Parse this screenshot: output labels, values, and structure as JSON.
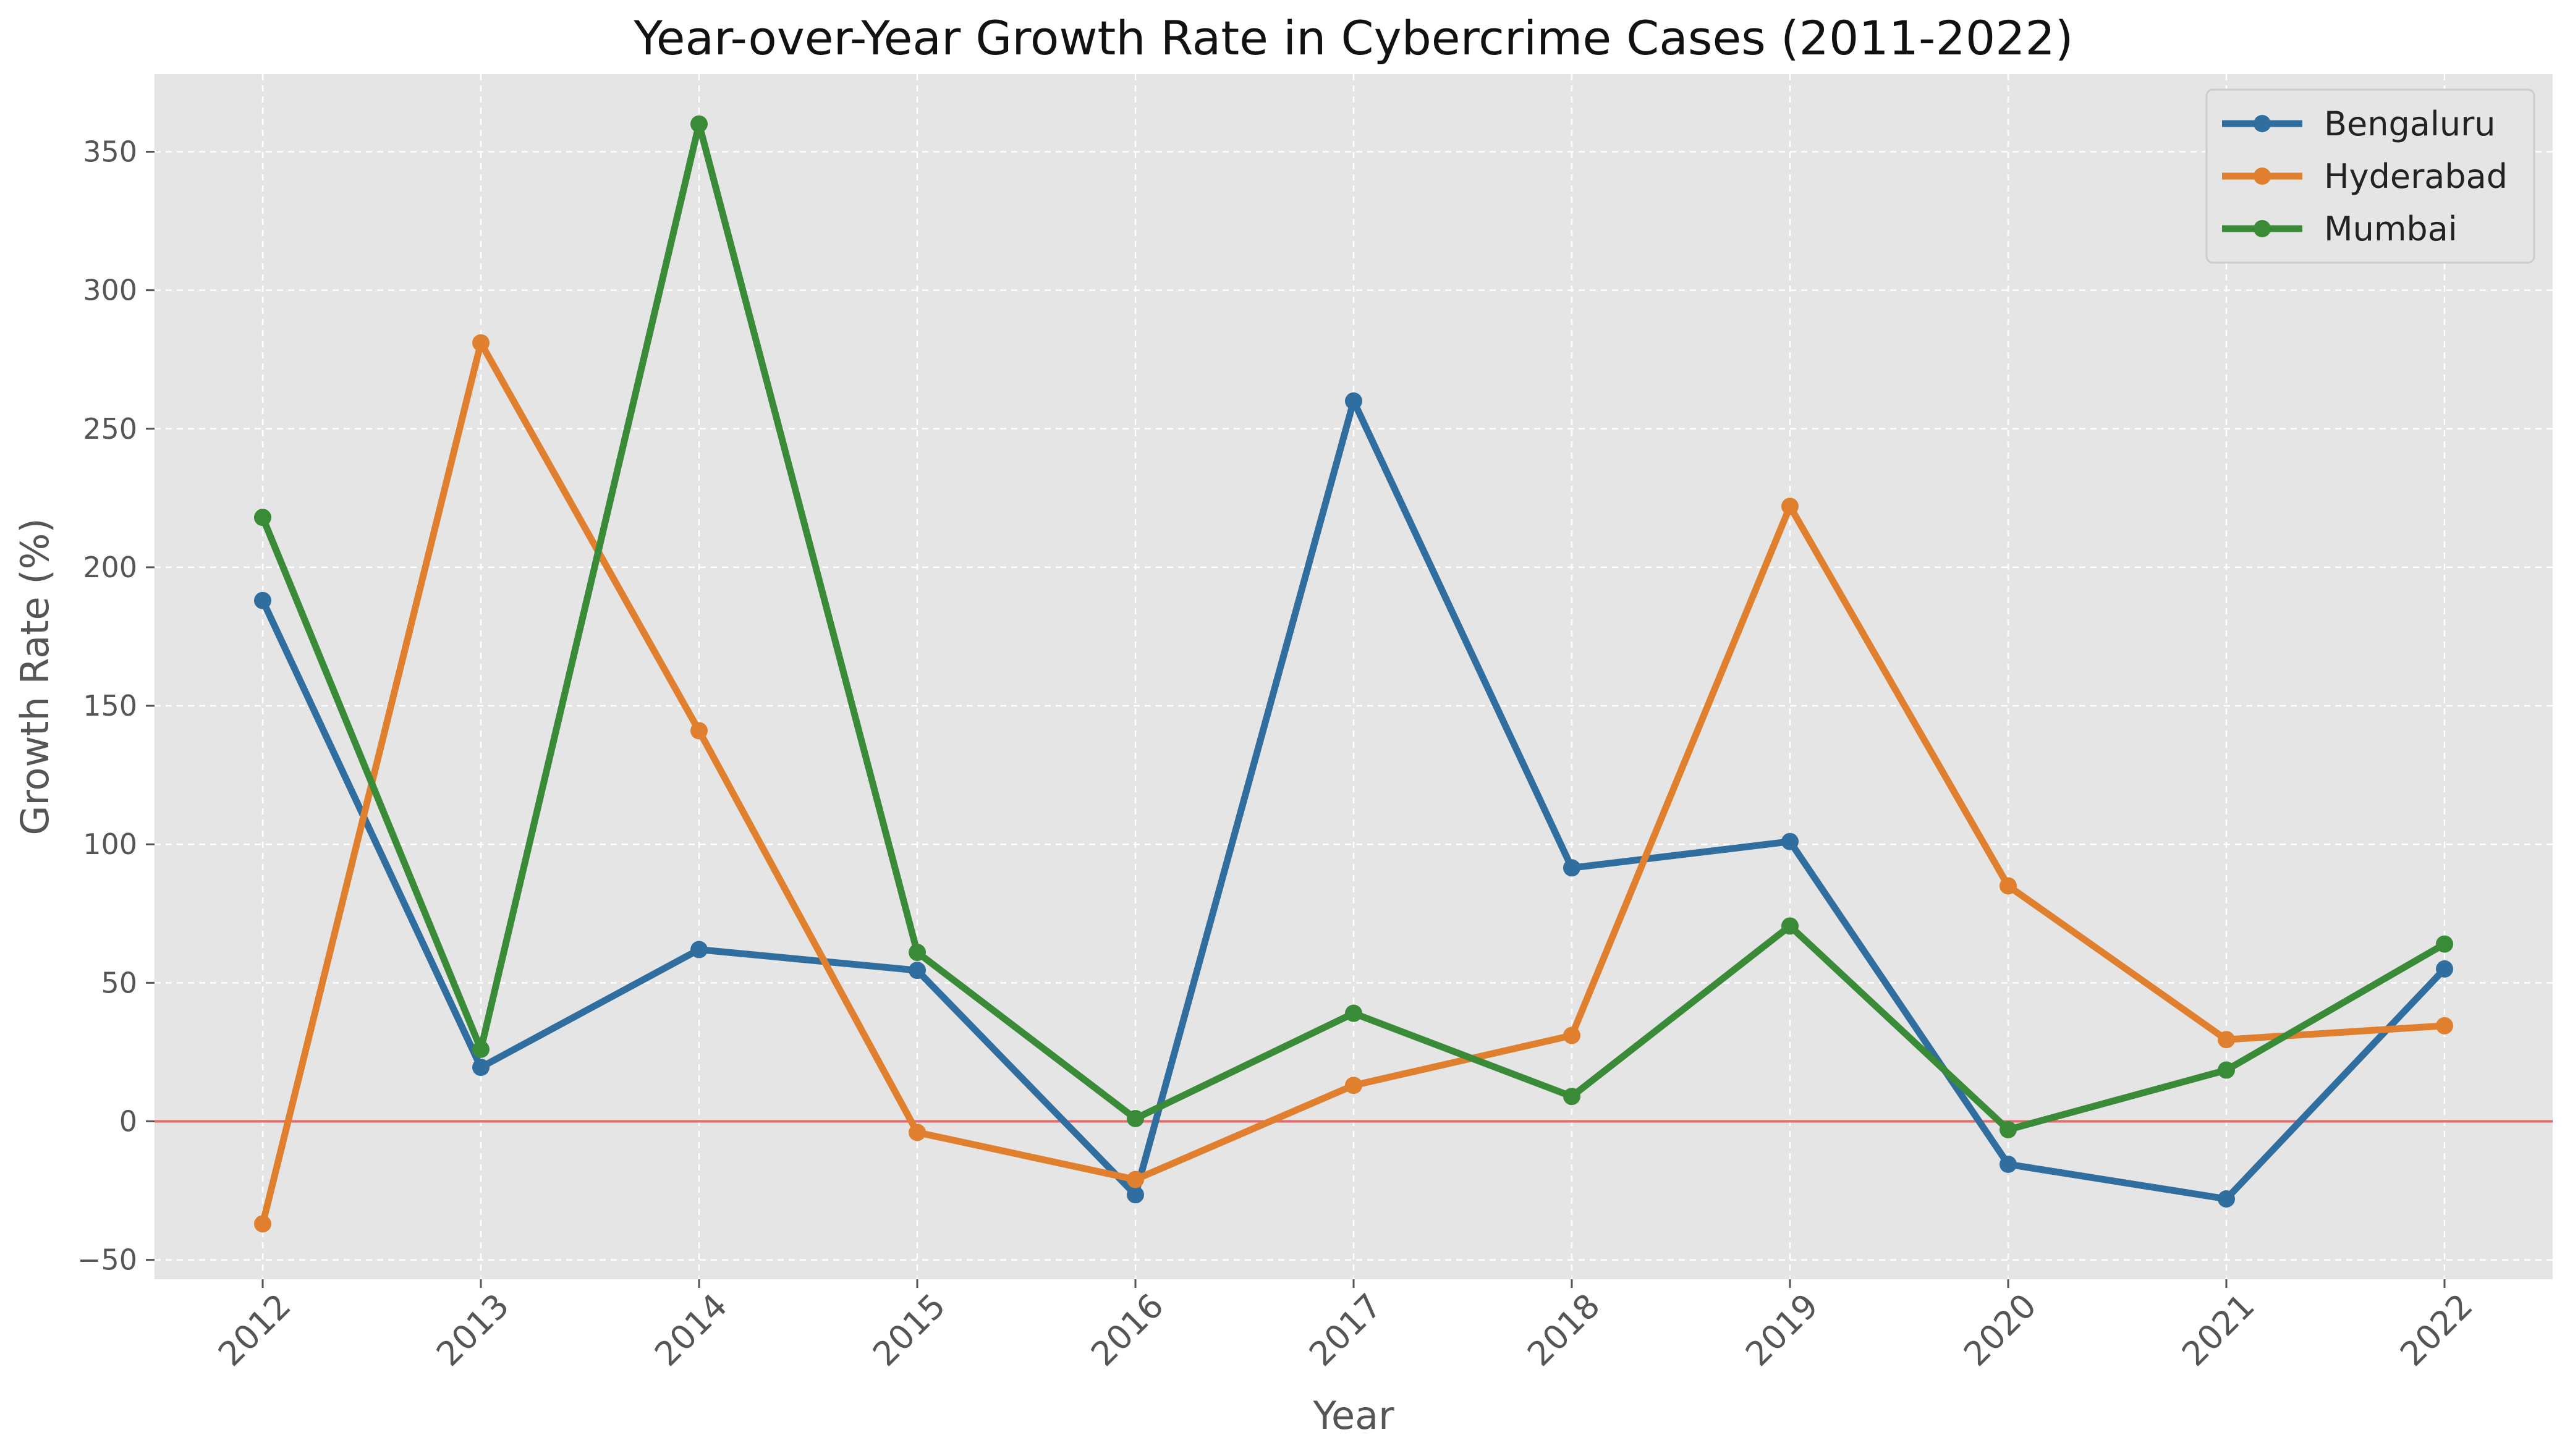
{
  "chart_data": {
    "type": "line",
    "title": "Year-over-Year Growth Rate in Cybercrime Cases (2011-2022)",
    "xlabel": "Year",
    "ylabel": "Growth Rate (%)",
    "x": [
      "2012",
      "2013",
      "2014",
      "2015",
      "2016",
      "2017",
      "2018",
      "2019",
      "2020",
      "2021",
      "2022"
    ],
    "ylim": [
      -57,
      378
    ],
    "yticks": [
      -50,
      0,
      50,
      100,
      150,
      200,
      250,
      300,
      350
    ],
    "ytick_labels": [
      "−50",
      "0",
      "50",
      "100",
      "150",
      "200",
      "250",
      "300",
      "350"
    ],
    "grid": true,
    "legend_position": "top-right",
    "reference_line": {
      "y": 0,
      "color": "#e8686a"
    },
    "background": "#e5e5e5",
    "series": [
      {
        "name": "Bengaluru",
        "color": "#2f6e9e",
        "values": [
          188,
          19.5,
          62,
          54.5,
          -26.5,
          260,
          91.5,
          101,
          -15.5,
          -28,
          55
        ]
      },
      {
        "name": "Hyderabad",
        "color": "#e0802f",
        "values": [
          -37,
          281,
          141,
          -4,
          -21,
          13,
          31,
          222,
          85,
          29.5,
          34.5
        ]
      },
      {
        "name": "Mumbai",
        "color": "#3a8b38",
        "values": [
          218,
          26,
          360,
          61,
          1,
          39,
          9,
          70.5,
          -3,
          18.5,
          64
        ]
      }
    ]
  }
}
